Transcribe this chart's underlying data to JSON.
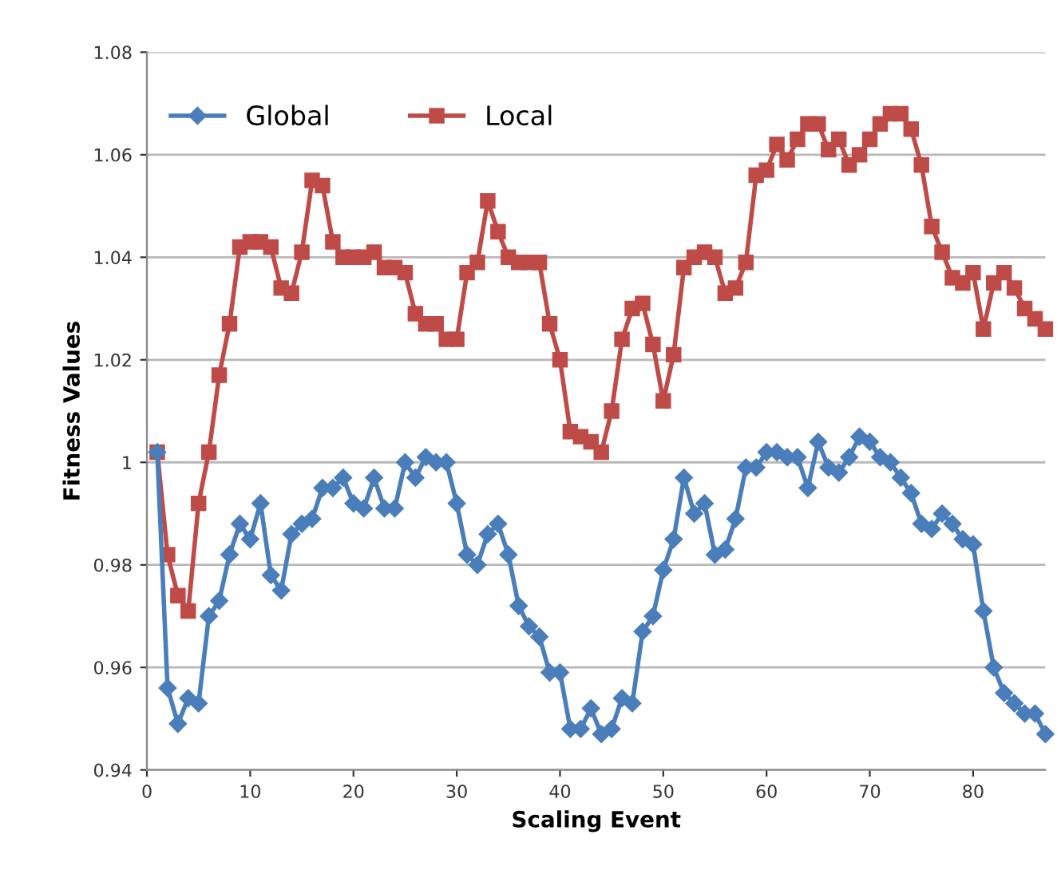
{
  "chart_data": {
    "type": "line",
    "xlabel": "Scaling Event",
    "ylabel": "Fitness Values",
    "x": [
      1,
      2,
      3,
      4,
      5,
      6,
      7,
      8,
      9,
      10,
      11,
      12,
      13,
      14,
      15,
      16,
      17,
      18,
      19,
      20,
      21,
      22,
      23,
      24,
      25,
      26,
      27,
      28,
      29,
      30,
      31,
      32,
      33,
      34,
      35,
      36,
      37,
      38,
      39,
      40,
      41,
      42,
      43,
      44,
      45,
      46,
      47,
      48,
      49,
      50,
      51,
      52,
      53,
      54,
      55,
      56,
      57,
      58,
      59,
      60,
      61,
      62,
      63,
      64,
      65,
      66,
      67,
      68,
      69,
      70,
      71,
      72,
      73,
      74,
      75,
      76,
      77,
      78,
      79,
      80,
      81,
      82,
      83,
      84,
      85,
      86,
      87
    ],
    "series": [
      {
        "name": "Global",
        "color": "#4a7ebb",
        "marker": "diamond",
        "values": [
          1.002,
          0.956,
          0.949,
          0.954,
          0.953,
          0.97,
          0.973,
          0.982,
          0.988,
          0.985,
          0.992,
          0.978,
          0.975,
          0.986,
          0.988,
          0.989,
          0.995,
          0.995,
          0.997,
          0.992,
          0.991,
          0.997,
          0.991,
          0.991,
          1.0,
          0.997,
          1.001,
          1.0,
          1.0,
          0.992,
          0.982,
          0.98,
          0.986,
          0.988,
          0.982,
          0.972,
          0.968,
          0.966,
          0.959,
          0.959,
          0.948,
          0.948,
          0.952,
          0.947,
          0.948,
          0.954,
          0.953,
          0.967,
          0.97,
          0.979,
          0.985,
          0.997,
          0.99,
          0.992,
          0.982,
          0.983,
          0.989,
          0.999,
          0.999,
          1.002,
          1.002,
          1.001,
          1.001,
          0.995,
          1.004,
          0.999,
          0.998,
          1.001,
          1.005,
          1.004,
          1.001,
          1.0,
          0.997,
          0.994,
          0.988,
          0.987,
          0.99,
          0.988,
          0.985,
          0.984,
          0.971,
          0.96,
          0.955,
          0.953,
          0.951,
          0.951,
          0.947
        ]
      },
      {
        "name": "Local",
        "color": "#be4b48",
        "marker": "square",
        "values": [
          1.002,
          0.982,
          0.974,
          0.971,
          0.992,
          1.002,
          1.017,
          1.027,
          1.042,
          1.043,
          1.043,
          1.042,
          1.034,
          1.033,
          1.041,
          1.055,
          1.054,
          1.043,
          1.04,
          1.04,
          1.04,
          1.041,
          1.038,
          1.038,
          1.037,
          1.029,
          1.027,
          1.027,
          1.024,
          1.024,
          1.037,
          1.039,
          1.051,
          1.045,
          1.04,
          1.039,
          1.039,
          1.039,
          1.027,
          1.02,
          1.006,
          1.005,
          1.004,
          1.002,
          1.01,
          1.024,
          1.03,
          1.031,
          1.023,
          1.012,
          1.021,
          1.038,
          1.04,
          1.041,
          1.04,
          1.033,
          1.034,
          1.039,
          1.056,
          1.057,
          1.062,
          1.059,
          1.063,
          1.066,
          1.066,
          1.061,
          1.063,
          1.058,
          1.06,
          1.063,
          1.066,
          1.068,
          1.068,
          1.065,
          1.058,
          1.046,
          1.041,
          1.036,
          1.035,
          1.037,
          1.026,
          1.035,
          1.037,
          1.034,
          1.03,
          1.028,
          1.026
        ]
      }
    ],
    "xlim": [
      0,
      87
    ],
    "xticks": [
      0,
      10,
      20,
      30,
      40,
      50,
      60,
      70,
      80
    ],
    "ylim": [
      0.94,
      1.08
    ],
    "yticks": [
      0.94,
      0.96,
      0.98,
      1,
      1.02,
      1.04,
      1.06,
      1.08
    ],
    "grid": "y",
    "legend": "top left",
    "line_style": "solid"
  }
}
